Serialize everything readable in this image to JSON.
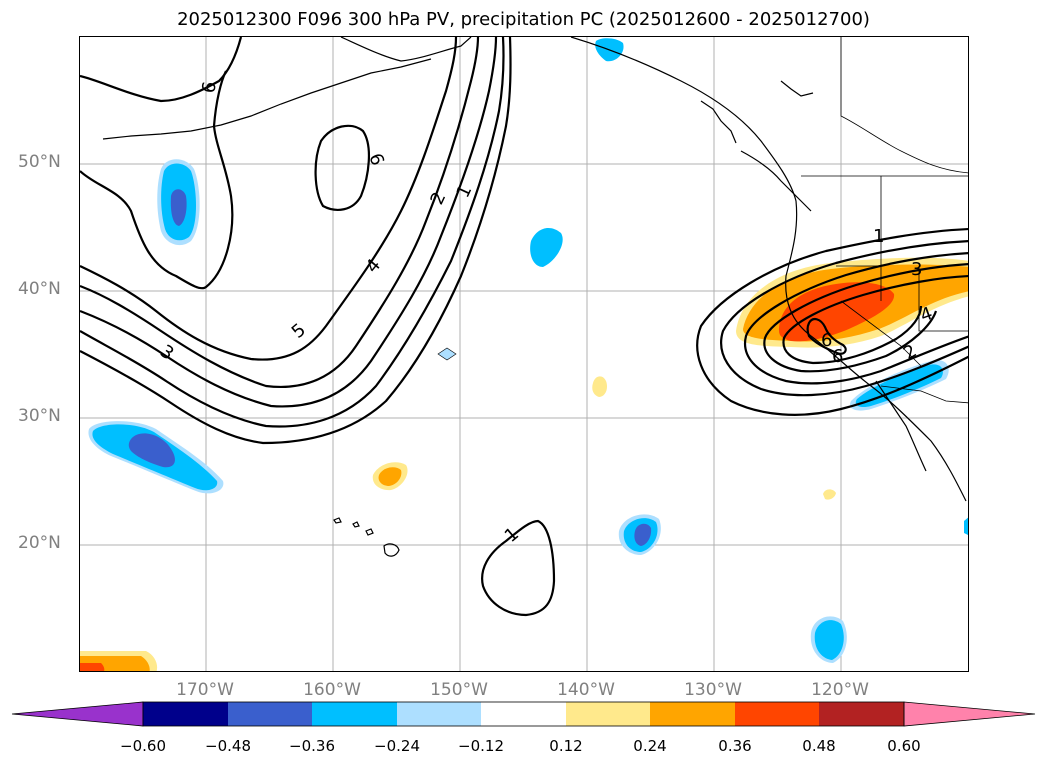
{
  "title": "2025012300 F096 300 hPa PV, precipitation PC (2025012600 - 2025012700)",
  "axes": {
    "lat_labels": [
      "50°N",
      "40°N",
      "30°N",
      "20°N"
    ],
    "lon_labels": [
      "170°W",
      "160°W",
      "150°W",
      "140°W",
      "130°W",
      "120°W"
    ]
  },
  "contour_labels": [
    "6",
    "6",
    "2",
    "1",
    "4",
    "5",
    "3",
    "1",
    "1",
    "3",
    "4",
    "2",
    "6",
    "6"
  ],
  "colorbar": {
    "ticks": [
      "−0.60",
      "−0.48",
      "−0.36",
      "−0.24",
      "−0.12",
      "0.12",
      "0.24",
      "0.36",
      "0.48",
      "0.60"
    ],
    "colors": [
      "#9932CC",
      "#00008B",
      "#3A5FCD",
      "#00BFFF",
      "#ADDFFF",
      "#FFFFFF",
      "#FFE98C",
      "#FFA500",
      "#FF4500",
      "#B22222",
      "#FF82AB"
    ]
  }
}
